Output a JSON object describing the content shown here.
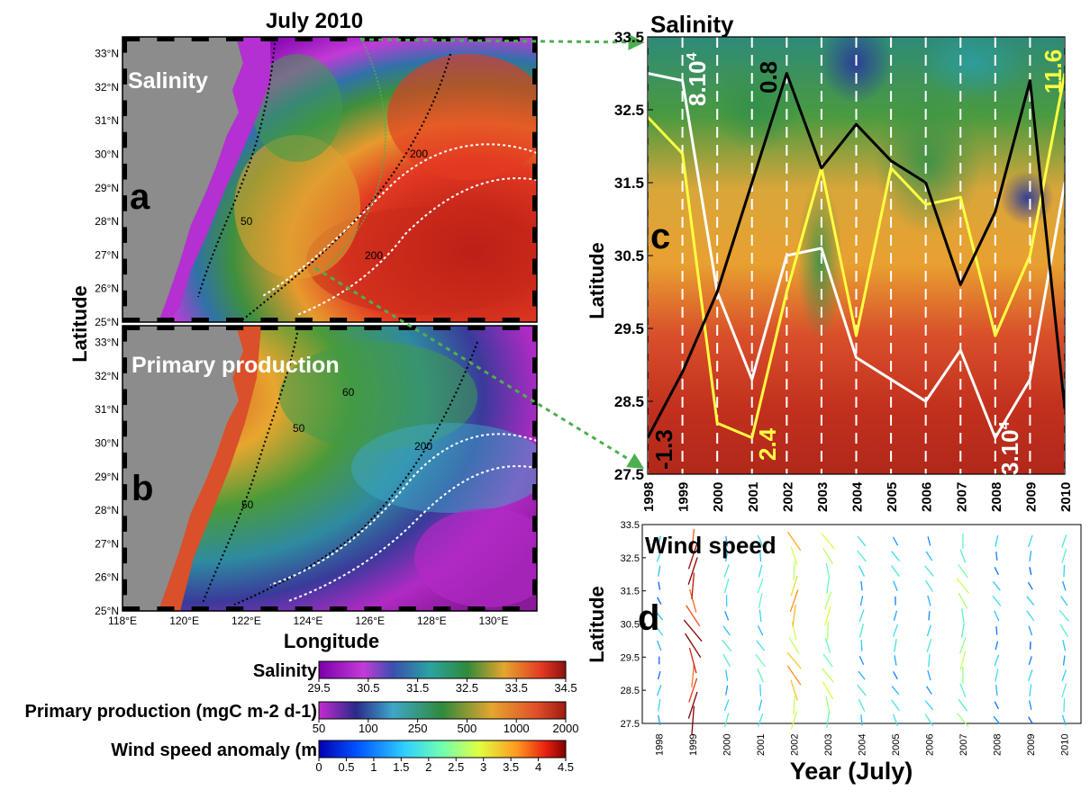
{
  "figure_title": "July 2010",
  "panels": {
    "a": {
      "letter": "a",
      "label": "Salinity"
    },
    "b": {
      "letter": "b",
      "label": "Primary production"
    },
    "c": {
      "letter": "c",
      "title": "Salinity"
    },
    "d": {
      "letter": "d",
      "title": "Wind speed"
    }
  },
  "map_axes": {
    "ylabel": "Latitude",
    "xlabel": "Longitude",
    "lat_ticks": [
      "25°N",
      "26°N",
      "27°N",
      "28°N",
      "29°N",
      "30°N",
      "31°N",
      "32°N",
      "33°N"
    ],
    "lon_ticks": [
      "118°E",
      "120°E",
      "122°E",
      "124°E",
      "126°E",
      "128°E",
      "130°E"
    ],
    "isobath_labels": [
      "50",
      "50",
      "50",
      "60",
      "200",
      "200",
      "200"
    ]
  },
  "colorbars": [
    {
      "label": "Salinity",
      "ticks": [
        "29.5",
        "30.5",
        "31.5",
        "32.5",
        "33.5",
        "34.5"
      ],
      "scale": "jet-like"
    },
    {
      "label": "Primary production (mgC m-2 d-1)",
      "ticks": [
        "50",
        "100",
        "250",
        "500",
        "1000",
        "2000"
      ],
      "scale": "log"
    },
    {
      "label": "Wind speed anomaly (m",
      "ticks": [
        "0",
        "0.5",
        "1",
        "1.5",
        "2",
        "2.5",
        "3",
        "3.5",
        "4",
        "4.5"
      ],
      "scale": "jet"
    }
  ],
  "colors": {
    "salinity_line": "#ffffff",
    "production_line": "#ffff44",
    "wind_line": "#000000",
    "year_grid": "#ffffff",
    "link_arrow": "#4caf50",
    "land": "#8c8c8c"
  },
  "chart_data": [
    {
      "type": "heatmap",
      "panel": "c",
      "title": "Salinity",
      "xlabel": "",
      "ylabel": "Latitude",
      "xlim": [
        1998,
        2010
      ],
      "ylim": [
        27.5,
        33.5
      ],
      "y_ticks": [
        "27.5",
        "28.5",
        "29.5",
        "30.5",
        "31.5",
        "32.5",
        "33.5"
      ],
      "x_ticks": [
        "1998",
        "1999",
        "2000",
        "2001",
        "2002",
        "2003",
        "2004",
        "2005",
        "2006",
        "2007",
        "2008",
        "2009",
        "2010"
      ],
      "grid": "vertical dashed white lines at each year",
      "overlay_series": [
        {
          "color": "white",
          "x": [
            1998,
            1999,
            2000,
            2001,
            2002,
            2003,
            2004,
            2005,
            2006,
            2007,
            2008,
            2009,
            2010
          ],
          "y": [
            33.0,
            32.9,
            30.0,
            28.8,
            30.5,
            30.6,
            29.1,
            28.8,
            28.5,
            29.2,
            28.0,
            28.8,
            31.5
          ]
        },
        {
          "color": "yellow",
          "x": [
            1998,
            1999,
            2000,
            2001,
            2002,
            2003,
            2004,
            2005,
            2006,
            2007,
            2008,
            2009,
            2010
          ],
          "y": [
            32.4,
            31.9,
            28.2,
            28.0,
            30.0,
            31.7,
            29.4,
            31.7,
            31.2,
            31.3,
            29.4,
            30.5,
            33.0
          ]
        },
        {
          "color": "black",
          "x": [
            1998,
            1999,
            2000,
            2001,
            2002,
            2003,
            2004,
            2005,
            2006,
            2007,
            2008,
            2009,
            2010
          ],
          "y": [
            28.0,
            28.9,
            30.0,
            31.5,
            33.0,
            31.7,
            32.3,
            31.8,
            31.5,
            30.1,
            31.1,
            32.9,
            28.4
          ]
        }
      ],
      "annotations": [
        {
          "text": "8.10",
          "sup": "4",
          "color": "white"
        },
        {
          "text": "0.8",
          "color": "black"
        },
        {
          "text": "11.6",
          "color": "yellow"
        },
        {
          "text": "-1.3",
          "color": "black"
        },
        {
          "text": "2.4",
          "color": "yellow"
        },
        {
          "text": "3.10",
          "sup": "4",
          "color": "white"
        }
      ]
    },
    {
      "type": "scatter",
      "panel": "d",
      "title": "Wind speed",
      "xlabel": "Year (July)",
      "ylabel": "Latitude",
      "xlim": [
        1997.5,
        2010.5
      ],
      "ylim": [
        27.5,
        33.5
      ],
      "y_ticks": [
        "27.5",
        "28.5",
        "29.5",
        "30.5",
        "31.5",
        "32.5",
        "33.5"
      ],
      "x_ticks": [
        "1998",
        "1999",
        "2000",
        "2001",
        "2002",
        "2003",
        "2004",
        "2005",
        "2006",
        "2007",
        "2008",
        "2009",
        "2010"
      ],
      "grid": "none",
      "mean_speed_by_year": [
        1.2,
        4.2,
        1.6,
        1.8,
        3.2,
        2.6,
        1.5,
        1.4,
        1.5,
        2.4,
        1.3,
        1.2,
        1.6
      ]
    }
  ]
}
